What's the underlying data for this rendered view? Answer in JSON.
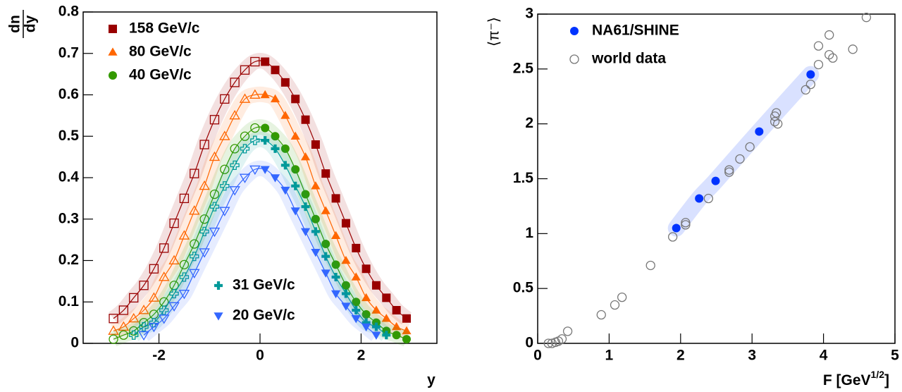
{
  "chart_data": [
    {
      "type": "line",
      "y_label": {
        "numerator": "dn",
        "denominator": "dy"
      },
      "x_label": "y",
      "x": [
        -2.9,
        -2.7,
        -2.5,
        -2.3,
        -2.1,
        -1.9,
        -1.7,
        -1.5,
        -1.3,
        -1.1,
        -0.9,
        -0.7,
        -0.5,
        -0.3,
        -0.1,
        0.1,
        0.3,
        0.5,
        0.7,
        0.9,
        1.1,
        1.3,
        1.5,
        1.7,
        1.9,
        2.1,
        2.3,
        2.5,
        2.7,
        2.9
      ],
      "open_side": "negative",
      "xlim": [
        -3.5,
        3.5
      ],
      "xticks": [
        -2,
        0,
        2
      ],
      "ylim": [
        0,
        0.8
      ],
      "yticks": [
        0,
        0.1,
        0.2,
        0.3,
        0.4,
        0.5,
        0.6,
        0.7,
        0.8
      ],
      "series": [
        {
          "name": "158 GeV/c",
          "color": "#990000",
          "marker": "square",
          "legend": "top-left",
          "values": [
            0.06,
            0.08,
            0.11,
            0.14,
            0.18,
            0.23,
            0.29,
            0.35,
            0.41,
            0.48,
            0.54,
            0.59,
            0.63,
            0.66,
            0.68,
            0.68,
            0.66,
            0.63,
            0.59,
            0.54,
            0.48,
            0.41,
            0.35,
            0.29,
            0.23,
            0.18,
            0.14,
            0.11,
            0.08,
            0.06
          ]
        },
        {
          "name": "80 GeV/c",
          "color": "#ff6600",
          "marker": "triangle-up",
          "legend": "top-left",
          "values": [
            0.03,
            0.04,
            0.06,
            0.08,
            0.11,
            0.16,
            0.2,
            0.26,
            0.32,
            0.38,
            0.45,
            0.5,
            0.55,
            0.59,
            0.6,
            0.6,
            0.59,
            0.55,
            0.5,
            0.45,
            0.38,
            0.32,
            0.26,
            0.2,
            0.16,
            0.11,
            0.08,
            0.06,
            0.04,
            0.03
          ]
        },
        {
          "name": "40 GeV/c",
          "color": "#339900",
          "marker": "circle",
          "legend": "top-left",
          "values": [
            0.01,
            0.02,
            0.03,
            0.05,
            0.07,
            0.1,
            0.14,
            0.19,
            0.24,
            0.3,
            0.36,
            0.42,
            0.47,
            0.5,
            0.52,
            0.52,
            0.5,
            0.47,
            0.42,
            0.36,
            0.3,
            0.24,
            0.19,
            0.14,
            0.1,
            0.07,
            0.05,
            0.03,
            0.02,
            0.01
          ]
        },
        {
          "name": "31 GeV/c",
          "color": "#009999",
          "marker": "cross",
          "legend": "bottom-center",
          "values": [
            null,
            null,
            0.02,
            0.04,
            0.05,
            0.08,
            0.12,
            0.16,
            0.21,
            0.27,
            0.33,
            0.38,
            0.43,
            0.47,
            0.49,
            0.49,
            0.47,
            0.43,
            0.38,
            0.33,
            0.27,
            0.21,
            0.16,
            0.12,
            0.08,
            0.05,
            0.04,
            0.02,
            null,
            null
          ]
        },
        {
          "name": "20 GeV/c",
          "color": "#3366ff",
          "marker": "triangle-down",
          "legend": "bottom-center",
          "values": [
            null,
            null,
            null,
            0.02,
            0.04,
            0.06,
            0.09,
            0.12,
            0.17,
            0.22,
            0.27,
            0.32,
            0.37,
            0.4,
            0.42,
            0.42,
            0.4,
            0.37,
            0.32,
            0.27,
            0.22,
            0.17,
            0.12,
            0.09,
            0.06,
            0.04,
            0.02,
            null,
            null,
            null
          ]
        }
      ]
    },
    {
      "type": "scatter",
      "y_label": "⟨π⁻⟩",
      "x_label": {
        "text": "F [GeV",
        "sup": "1/2",
        "end": "]"
      },
      "xlim": [
        0,
        5
      ],
      "xticks": [
        0,
        1,
        2,
        3,
        4,
        5
      ],
      "ylim": [
        0,
        3
      ],
      "yticks": [
        0,
        0.5,
        1,
        1.5,
        2,
        2.5,
        3
      ],
      "legend": "top-left",
      "series": [
        {
          "name": "NA61/SHINE",
          "color": "#0033ff",
          "marker": "circle",
          "open": false,
          "band": true,
          "x": [
            1.94,
            2.26,
            2.49,
            3.1,
            3.82
          ],
          "values": [
            1.05,
            1.32,
            1.48,
            1.93,
            2.45
          ]
        },
        {
          "name": "world data",
          "color": "#777777",
          "marker": "circle",
          "open": true,
          "band": false,
          "x": [
            0.15,
            0.2,
            0.25,
            0.29,
            0.34,
            0.42,
            0.89,
            1.08,
            1.18,
            1.58,
            1.89,
            2.07,
            2.07,
            2.39,
            2.68,
            2.68,
            2.83,
            2.97,
            3.32,
            3.32,
            3.34,
            3.36,
            3.75,
            3.82,
            3.93,
            3.93,
            4.08,
            4.08,
            4.13,
            4.41,
            4.6
          ],
          "values": [
            0,
            0,
            0.01,
            0.02,
            0.04,
            0.11,
            0.26,
            0.35,
            0.42,
            0.71,
            0.97,
            1.08,
            1.1,
            1.32,
            1.58,
            1.56,
            1.68,
            1.79,
            2.07,
            2.02,
            2.1,
            2.0,
            2.31,
            2.36,
            2.54,
            2.71,
            2.81,
            2.63,
            2.6,
            2.68,
            2.97
          ]
        }
      ]
    }
  ]
}
